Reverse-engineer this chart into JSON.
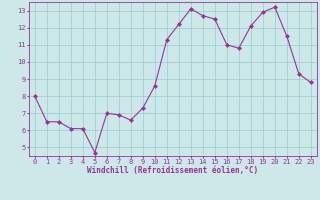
{
  "hours": [
    0,
    1,
    2,
    3,
    4,
    5,
    6,
    7,
    8,
    9,
    10,
    11,
    12,
    13,
    14,
    15,
    16,
    17,
    18,
    19,
    20,
    21,
    22,
    23
  ],
  "temps": [
    8.0,
    6.5,
    6.5,
    6.1,
    6.1,
    4.7,
    7.0,
    6.9,
    6.6,
    7.3,
    8.6,
    11.3,
    12.2,
    13.1,
    12.7,
    12.5,
    11.0,
    10.8,
    12.1,
    12.9,
    13.2,
    11.5,
    9.3,
    8.8
  ],
  "line_color": "#993399",
  "bg_color": "#cce8e8",
  "grid_color": "#99cccc",
  "xlabel": "Windchill (Refroidissement éolien,°C)",
  "ylim": [
    4.5,
    13.5
  ],
  "xlim": [
    -0.5,
    23.5
  ],
  "yticks": [
    5,
    6,
    7,
    8,
    9,
    10,
    11,
    12,
    13
  ],
  "xticks": [
    0,
    1,
    2,
    3,
    4,
    5,
    6,
    7,
    8,
    9,
    10,
    11,
    12,
    13,
    14,
    15,
    16,
    17,
    18,
    19,
    20,
    21,
    22,
    23
  ],
  "tick_fontsize": 5.0,
  "xlabel_fontsize": 5.5,
  "linewidth": 0.8,
  "markersize": 2.0
}
